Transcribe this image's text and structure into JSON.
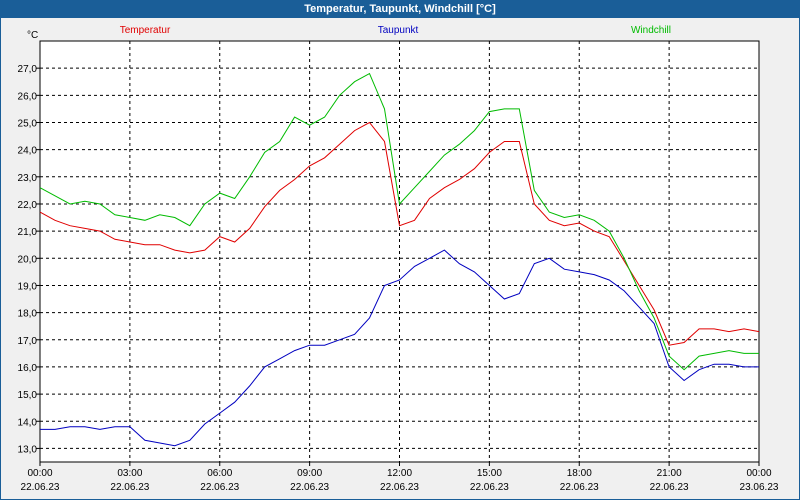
{
  "window": {
    "title": "Temperatur, Taupunkt, Windchill [°C]"
  },
  "colors": {
    "titlebar": "#1a5e98",
    "plot_bg": "#ffffff",
    "grid": "#000000"
  },
  "chart_data": {
    "type": "line",
    "title": "Temperatur, Taupunkt, Windchill [°C]",
    "ylabel": "°C",
    "xlabel": "",
    "ylim": [
      12.5,
      28.0
    ],
    "xlim": [
      0,
      24
    ],
    "grid": true,
    "legend_placement": "top",
    "y_ticks": [
      "13,0",
      "14,0",
      "15,0",
      "16,0",
      "17,0",
      "18,0",
      "19,0",
      "20,0",
      "21,0",
      "22,0",
      "23,0",
      "24,0",
      "25,0",
      "26,0",
      "27,0"
    ],
    "x_ticks": [
      {
        "time": "00:00",
        "date": "22.06.23"
      },
      {
        "time": "03:00",
        "date": "22.06.23"
      },
      {
        "time": "06:00",
        "date": "22.06.23"
      },
      {
        "time": "09:00",
        "date": "22.06.23"
      },
      {
        "time": "12:00",
        "date": "22.06.23"
      },
      {
        "time": "15:00",
        "date": "22.06.23"
      },
      {
        "time": "18:00",
        "date": "22.06.23"
      },
      {
        "time": "21:00",
        "date": "22.06.23"
      },
      {
        "time": "00:00",
        "date": "23.06.23"
      }
    ],
    "x_unit": "hours since 00:00 22.06.23",
    "series": [
      {
        "name": "Temperatur",
        "color": "#e00000",
        "x": [
          0,
          0.5,
          1,
          1.5,
          2,
          2.5,
          3,
          3.5,
          4,
          4.5,
          5,
          5.5,
          6,
          6.5,
          7,
          7.5,
          8,
          8.5,
          9,
          9.5,
          10,
          10.5,
          11,
          11.5,
          12,
          12.5,
          13,
          13.5,
          14,
          14.5,
          15,
          15.5,
          16,
          16.5,
          17,
          17.5,
          18,
          18.5,
          19,
          19.5,
          20,
          20.5,
          21,
          21.5,
          22,
          22.5,
          23,
          23.5,
          24
        ],
        "y": [
          21.7,
          21.4,
          21.2,
          21.1,
          21.0,
          20.7,
          20.6,
          20.5,
          20.5,
          20.3,
          20.2,
          20.3,
          20.8,
          20.6,
          21.1,
          21.9,
          22.5,
          22.9,
          23.4,
          23.7,
          24.2,
          24.7,
          25.0,
          24.3,
          21.2,
          21.4,
          22.2,
          22.6,
          22.9,
          23.3,
          23.9,
          24.3,
          24.3,
          22.0,
          21.4,
          21.2,
          21.3,
          21.0,
          20.8,
          19.9,
          19.0,
          18.1,
          16.8,
          16.9,
          17.4,
          17.4,
          17.3,
          17.4,
          17.3
        ]
      },
      {
        "name": "Taupunkt",
        "color": "#0000c0",
        "x": [
          0,
          0.5,
          1,
          1.5,
          2,
          2.5,
          3,
          3.5,
          4,
          4.5,
          5,
          5.5,
          6,
          6.5,
          7,
          7.5,
          8,
          8.5,
          9,
          9.5,
          10,
          10.5,
          11,
          11.5,
          12,
          12.5,
          13,
          13.5,
          14,
          14.5,
          15,
          15.5,
          16,
          16.5,
          17,
          17.5,
          18,
          18.5,
          19,
          19.5,
          20,
          20.5,
          21,
          21.5,
          22,
          22.5,
          23,
          23.5,
          24
        ],
        "y": [
          13.7,
          13.7,
          13.8,
          13.8,
          13.7,
          13.8,
          13.8,
          13.3,
          13.2,
          13.1,
          13.3,
          13.9,
          14.3,
          14.7,
          15.3,
          16.0,
          16.3,
          16.6,
          16.8,
          16.8,
          17.0,
          17.2,
          17.8,
          19.0,
          19.2,
          19.7,
          20.0,
          20.3,
          19.8,
          19.5,
          19.0,
          18.5,
          18.7,
          19.8,
          20.0,
          19.6,
          19.5,
          19.4,
          19.2,
          18.8,
          18.2,
          17.6,
          16.0,
          15.5,
          15.9,
          16.1,
          16.1,
          16.0,
          16.0
        ]
      },
      {
        "name": "Windchill",
        "color": "#00bb00",
        "x": [
          0,
          0.5,
          1,
          1.5,
          2,
          2.5,
          3,
          3.5,
          4,
          4.5,
          5,
          5.5,
          6,
          6.5,
          7,
          7.5,
          8,
          8.5,
          9,
          9.5,
          10,
          10.5,
          11,
          11.5,
          12,
          12.5,
          13,
          13.5,
          14,
          14.5,
          15,
          15.5,
          16,
          16.5,
          17,
          17.5,
          18,
          18.5,
          19,
          19.5,
          20,
          20.5,
          21,
          21.5,
          22,
          22.5,
          23,
          23.5,
          24
        ],
        "y": [
          22.6,
          22.3,
          22.0,
          22.1,
          22.0,
          21.6,
          21.5,
          21.4,
          21.6,
          21.5,
          21.2,
          22.0,
          22.4,
          22.2,
          23.0,
          23.9,
          24.3,
          25.2,
          24.9,
          25.2,
          26.0,
          26.5,
          26.8,
          25.5,
          22.0,
          22.6,
          23.2,
          23.8,
          24.2,
          24.7,
          25.4,
          25.5,
          25.5,
          22.5,
          21.7,
          21.5,
          21.6,
          21.4,
          21.0,
          20.0,
          18.8,
          17.8,
          16.4,
          15.9,
          16.4,
          16.5,
          16.6,
          16.5,
          16.5
        ]
      }
    ]
  }
}
